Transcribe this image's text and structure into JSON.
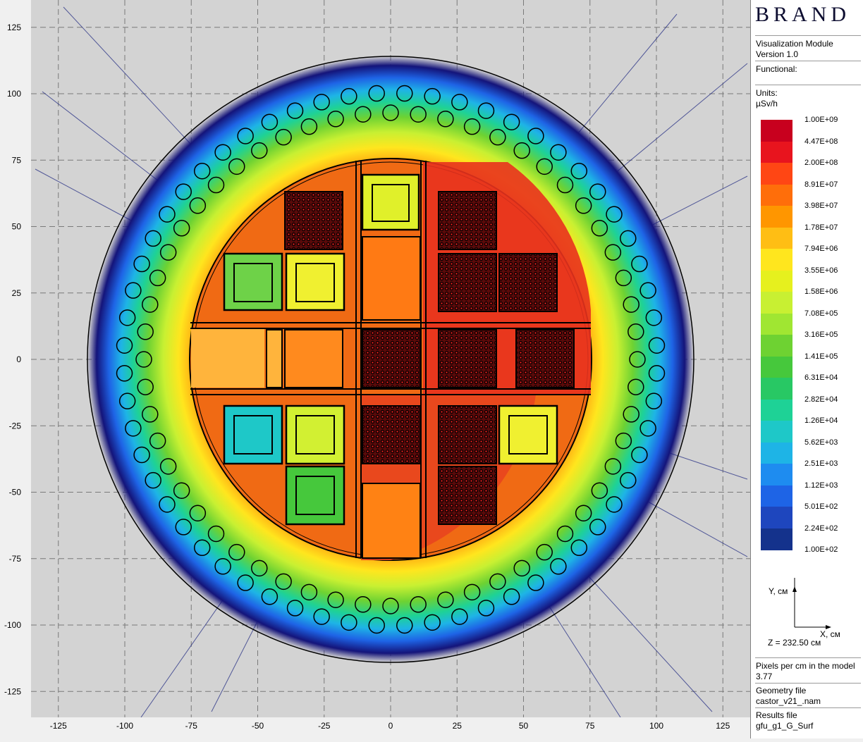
{
  "panel": {
    "logo": "BRAND",
    "module": "Visualization Module",
    "version": "Version 1.0",
    "functional_label": "Functional:",
    "units_label": "Units:",
    "units_value": "µSv/h",
    "legend_colors": [
      "#c8001e",
      "#e8141e",
      "#ff4614",
      "#ff6e0a",
      "#ff9600",
      "#ffbe14",
      "#ffe61e",
      "#e6f01e",
      "#c8f032",
      "#a0e632",
      "#6ed232",
      "#46c83c",
      "#28c864",
      "#1ed296",
      "#1ec8c8",
      "#1eb4e6",
      "#1e8cf0",
      "#1e64e6",
      "#1e46be",
      "#14328c"
    ],
    "legend_labels": [
      "1.00E+09",
      "4.47E+08",
      "2.00E+08",
      "8.91E+07",
      "3.98E+07",
      "1.78E+07",
      "7.94E+06",
      "3.55E+06",
      "1.58E+06",
      "7.08E+05",
      "3.16E+05",
      "1.41E+05",
      "6.31E+04",
      "2.82E+04",
      "1.26E+04",
      "5.62E+03",
      "2.51E+03",
      "1.12E+03",
      "5.01E+02",
      "2.24E+02",
      "1.00E+02"
    ],
    "axis_y": "Y, см",
    "axis_x": "X, см",
    "z_value": "Z = 232.50 см",
    "pixels_label": "Pixels per cm in the model",
    "pixels_value": "3.77",
    "geometry_label": "Geometry file",
    "geometry_value": "castor_v21_.nam",
    "results_label": "Results file",
    "results_value": "gfu_g1_G_Surf"
  },
  "plot": {
    "x_ticks": [
      "-125",
      "-100",
      "-75",
      "-50",
      "-25",
      "0",
      "25",
      "50",
      "75",
      "100",
      "125"
    ],
    "y_ticks": [
      "125",
      "100",
      "75",
      "50",
      "25",
      "0",
      "-25",
      "-50",
      "-75",
      "-100",
      "-125"
    ],
    "colors": {
      "background": "#d3d3d3",
      "outer_halo": "#14147a",
      "fuel_dark": "#5a0a0a",
      "hot": "#e8321e",
      "warm": "#f07814"
    }
  }
}
